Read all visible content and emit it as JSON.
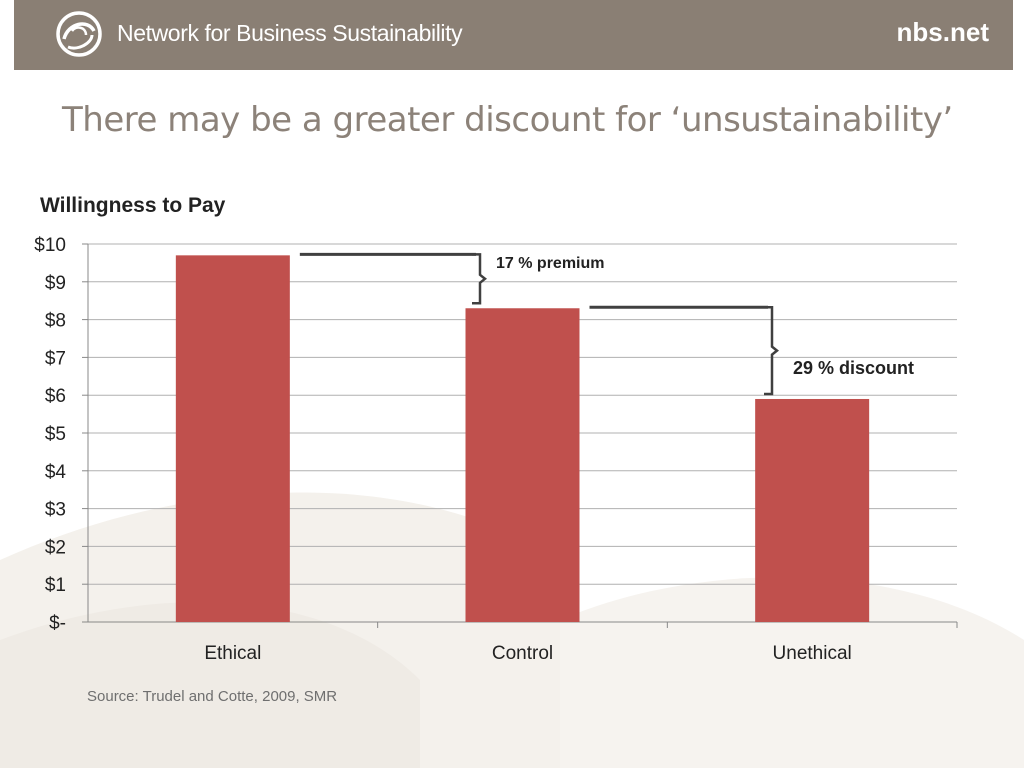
{
  "header": {
    "org_name": "Network for Business Sustainability",
    "site": "nbs.net"
  },
  "slide": {
    "title": "There may be a greater discount for ‘unsustainability’"
  },
  "colors": {
    "header_bg": "#8a7f74",
    "bar": "#c0504d",
    "grid": "#b0b0b0",
    "bracket": "#404040"
  },
  "chart_data": {
    "type": "bar",
    "title": "Willingness to Pay",
    "categories": [
      "Ethical",
      "Control",
      "Unethical"
    ],
    "values": [
      9.7,
      8.3,
      5.9
    ],
    "ylim": [
      0,
      10
    ],
    "yticks": [
      0,
      1,
      2,
      3,
      4,
      5,
      6,
      7,
      8,
      9,
      10
    ],
    "ytick_labels": [
      "$-",
      "$1",
      "$2",
      "$3",
      "$4",
      "$5",
      "$6",
      "$7",
      "$8",
      "$9",
      "$10"
    ],
    "grid": true,
    "annotations": [
      {
        "text": "17 % premium",
        "from": "Ethical",
        "to": "Control"
      },
      {
        "text": "29 % discount",
        "from": "Control",
        "to": "Unethical"
      }
    ]
  },
  "source": "Source: Trudel and Cotte, 2009, SMR"
}
